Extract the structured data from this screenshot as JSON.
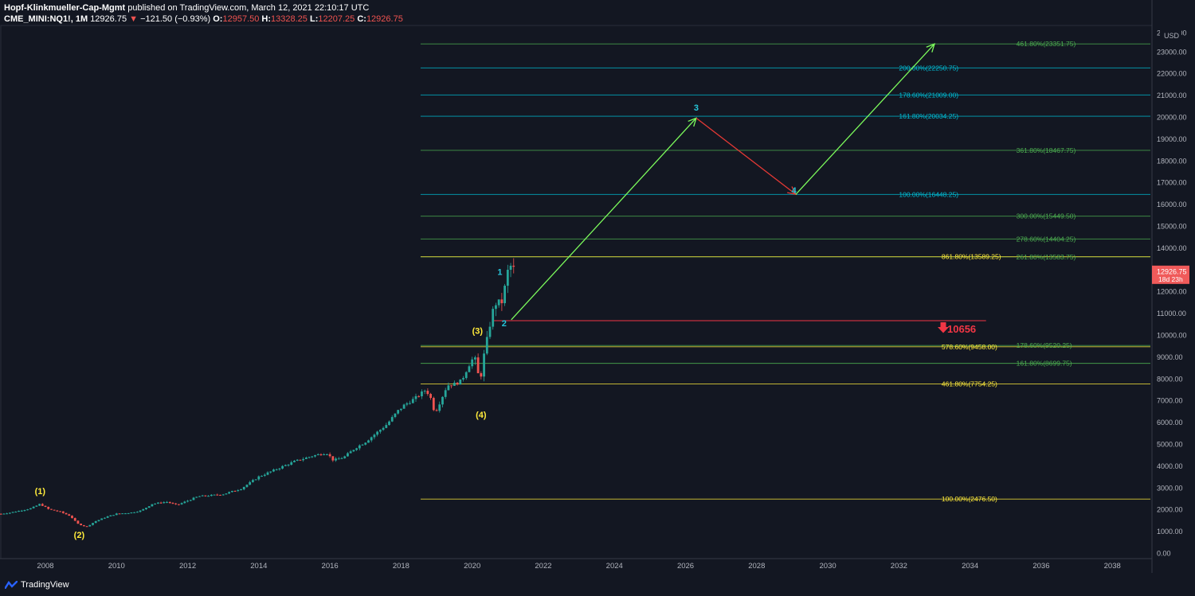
{
  "header": {
    "author": "Hopf-Klinkmueller-Cap-Mgmt",
    "published": "published on TradingView.com, March 12, 2021 22:10:17 UTC",
    "symbol": "CME_MINI:NQ1!, 1M",
    "last": "12926.75",
    "change": "−121.50 (−0.93%)",
    "o_label": "O:",
    "o_value": "12957.50",
    "h_label": "H:",
    "h_value": "13328.25",
    "l_label": "L:",
    "l_value": "12207.25",
    "c_label": "C:",
    "c_value": "12926.75"
  },
  "footer": {
    "brand": "TradingView"
  },
  "chart_data": {
    "type": "candlestick",
    "currency": "USD",
    "ylim": [
      0,
      24000
    ],
    "xlim": [
      2006.7,
      2039.3
    ],
    "y_ticks": [
      "0.00",
      "1000.00",
      "2000.00",
      "3000.00",
      "4000.00",
      "5000.00",
      "6000.00",
      "7000.00",
      "8000.00",
      "9000.00",
      "10000.00",
      "11000.00",
      "12000.00",
      "13000.00",
      "14000.00",
      "15000.00",
      "16000.00",
      "17000.00",
      "18000.00",
      "19000.00",
      "20000.00",
      "21000.00",
      "22000.00",
      "23000.00"
    ],
    "top_tick": "24000.00",
    "x_ticks": [
      "2008",
      "2010",
      "2012",
      "2014",
      "2016",
      "2018",
      "2020",
      "2022",
      "2024",
      "2026",
      "2028",
      "2030",
      "2032",
      "2034",
      "2036",
      "2038"
    ],
    "last_price": {
      "value": 12926.75,
      "label": "12926.75",
      "countdown": "18d 23h"
    },
    "price_path": [
      [
        2006.75,
        1800
      ],
      [
        2007.0,
        1850
      ],
      [
        2007.3,
        1950
      ],
      [
        2007.6,
        2050
      ],
      [
        2007.85,
        2250
      ],
      [
        2008.1,
        2000
      ],
      [
        2008.4,
        1900
      ],
      [
        2008.7,
        1700
      ],
      [
        2008.9,
        1350
      ],
      [
        2009.15,
        1200
      ],
      [
        2009.4,
        1450
      ],
      [
        2009.7,
        1650
      ],
      [
        2010.0,
        1800
      ],
      [
        2010.4,
        1850
      ],
      [
        2010.7,
        1950
      ],
      [
        2011.0,
        2250
      ],
      [
        2011.4,
        2350
      ],
      [
        2011.7,
        2200
      ],
      [
        2012.0,
        2400
      ],
      [
        2012.3,
        2600
      ],
      [
        2012.7,
        2650
      ],
      [
        2013.0,
        2700
      ],
      [
        2013.5,
        2950
      ],
      [
        2014.0,
        3500
      ],
      [
        2014.5,
        3850
      ],
      [
        2015.0,
        4200
      ],
      [
        2015.5,
        4450
      ],
      [
        2015.9,
        4600
      ],
      [
        2016.1,
        4250
      ],
      [
        2016.4,
        4400
      ],
      [
        2016.7,
        4800
      ],
      [
        2017.0,
        5100
      ],
      [
        2017.3,
        5500
      ],
      [
        2017.6,
        5900
      ],
      [
        2017.9,
        6500
      ],
      [
        2018.1,
        6800
      ],
      [
        2018.4,
        7100
      ],
      [
        2018.7,
        7500
      ],
      [
        2018.85,
        7050
      ],
      [
        2018.95,
        6400
      ],
      [
        2019.1,
        6950
      ],
      [
        2019.3,
        7700
      ],
      [
        2019.5,
        7750
      ],
      [
        2019.7,
        7900
      ],
      [
        2019.9,
        8600
      ],
      [
        2020.05,
        9000
      ],
      [
        2020.15,
        8500
      ],
      [
        2020.2,
        7600
      ],
      [
        2020.3,
        8800
      ],
      [
        2020.4,
        9600
      ],
      [
        2020.5,
        10500
      ],
      [
        2020.6,
        11200
      ],
      [
        2020.7,
        11600
      ],
      [
        2020.8,
        11300
      ],
      [
        2020.9,
        12000
      ],
      [
        2021.0,
        12900
      ],
      [
        2021.1,
        13200
      ],
      [
        2021.2,
        12926.75
      ]
    ],
    "fib_levels": [
      {
        "label": "461.80%(23351.75)",
        "value": 23351.75,
        "color": "#4caf50",
        "x_start": 2018.55,
        "label_x": 2035.3
      },
      {
        "label": "200.00%(22250.75)",
        "value": 22250.75,
        "color": "#00bcd4",
        "x_start": 2018.55,
        "label_x": 2032.0
      },
      {
        "label": "178.60%(21009.00)",
        "value": 21009.0,
        "color": "#00bcd4",
        "x_start": 2018.55,
        "label_x": 2032.0
      },
      {
        "label": "161.80%(20034.25)",
        "value": 20034.25,
        "color": "#00bcd4",
        "x_start": 2018.55,
        "label_x": 2032.0
      },
      {
        "label": "361.80%(18467.75)",
        "value": 18467.75,
        "color": "#4caf50",
        "x_start": 2018.55,
        "label_x": 2035.3
      },
      {
        "label": "100.00%(16448.25)",
        "value": 16448.25,
        "color": "#00bcd4",
        "x_start": 2018.55,
        "label_x": 2032.0
      },
      {
        "label": "300.00%(15449.50)",
        "value": 15449.5,
        "color": "#4caf50",
        "x_start": 2018.55,
        "label_x": 2035.3
      },
      {
        "label": "278.60%(14404.25)",
        "value": 14404.25,
        "color": "#4caf50",
        "x_start": 2018.55,
        "label_x": 2035.3
      },
      {
        "label": "261.80%(13583.75)",
        "value": 13583.75,
        "color": "#4caf50",
        "x_start": 2018.55,
        "label_x": 2035.3
      },
      {
        "label": "861.80%(13589.25)",
        "value": 13589.25,
        "color": "#ffeb3b",
        "x_start": 2018.55,
        "label_x": 2033.2
      },
      {
        "label": "178.60%(9520.25)",
        "value": 9520.25,
        "color": "#4caf50",
        "x_start": 2018.55,
        "label_x": 2035.3
      },
      {
        "label": "578.60%(9458.00)",
        "value": 9458.0,
        "color": "#ffeb3b",
        "x_start": 2018.55,
        "label_x": 2033.2
      },
      {
        "label": "161.80%(8699.75)",
        "value": 8699.75,
        "color": "#4caf50",
        "x_start": 2018.55,
        "label_x": 2035.3
      },
      {
        "label": "461.80%(7754.25)",
        "value": 7754.25,
        "color": "#ffeb3b",
        "x_start": 2018.55,
        "label_x": 2033.2
      },
      {
        "label": "100.00%(2476.50)",
        "value": 2476.5,
        "color": "#ffeb3b",
        "x_start": 2018.55,
        "label_x": 2033.2
      }
    ],
    "support_line": {
      "value": 10656,
      "label": "10656",
      "color": "#f23645",
      "x_start": 2020.6,
      "x_end": 2034.45
    },
    "projection": [
      {
        "from": [
          2021.1,
          10700
        ],
        "to": [
          2026.3,
          19950
        ],
        "color": "#7cfc5c"
      },
      {
        "from": [
          2026.3,
          19950
        ],
        "to": [
          2029.1,
          16450
        ],
        "color": "#e53935"
      },
      {
        "from": [
          2029.1,
          16450
        ],
        "to": [
          2033.0,
          23350
        ],
        "color": "#7cfc5c"
      }
    ],
    "wave_labels": [
      {
        "text": "(1)",
        "x": 2007.85,
        "y": 2700,
        "color": "#ffeb3b"
      },
      {
        "text": "(2)",
        "x": 2008.95,
        "y": 700,
        "color": "#ffeb3b"
      },
      {
        "text": "(3)",
        "x": 2020.15,
        "y": 10050,
        "color": "#ffeb3b"
      },
      {
        "text": "(4)",
        "x": 2020.25,
        "y": 6200,
        "color": "#ffeb3b"
      },
      {
        "text": "1",
        "x": 2020.78,
        "y": 12750,
        "color": "#26c6da"
      },
      {
        "text": "2",
        "x": 2020.9,
        "y": 10400,
        "color": "#26c6da"
      },
      {
        "text": "3",
        "x": 2026.3,
        "y": 20300,
        "color": "#26c6da"
      },
      {
        "text": "4",
        "x": 2029.05,
        "y": 16500,
        "color": "#26c6da"
      }
    ],
    "colors": {
      "up": "#26a69a",
      "down": "#ef5350",
      "background": "#131722",
      "grid": "#1e222d",
      "axis_text": "#b2b5be"
    }
  }
}
